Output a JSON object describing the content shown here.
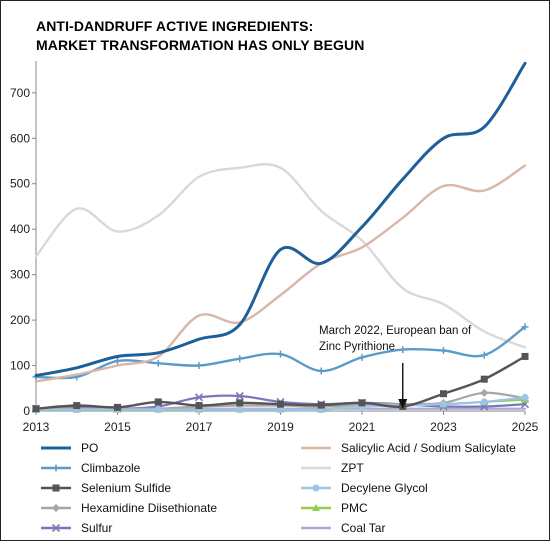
{
  "chart_data": {
    "type": "line",
    "title_lines": [
      "ANTI-DANDRUFF ACTIVE INGREDIENTS:",
      "MARKET TRANSFORMATION HAS ONLY BEGUN"
    ],
    "x": [
      2013,
      2014,
      2015,
      2016,
      2017,
      2018,
      2019,
      2020,
      2021,
      2022,
      2023,
      2024,
      2025
    ],
    "x_tick_labels": [
      "2013",
      "2015",
      "2017",
      "2019",
      "2021",
      "2023",
      "2025"
    ],
    "y_tick_labels": [
      "0",
      "100",
      "200",
      "300",
      "400",
      "500",
      "600",
      "700"
    ],
    "xlim": [
      2013,
      2025
    ],
    "ylim": [
      0,
      770
    ],
    "grid": false,
    "legend_position": "bottom",
    "series": [
      {
        "name": "PO",
        "color": "#1f5f99",
        "marker": "none",
        "values": [
          78,
          95,
          120,
          128,
          158,
          190,
          355,
          325,
          405,
          510,
          600,
          625,
          765
        ]
      },
      {
        "name": "Salicylic Acid / Sodium Salicylate",
        "color": "#d9b6a6",
        "marker": "none",
        "values": [
          65,
          80,
          100,
          120,
          210,
          195,
          255,
          325,
          360,
          425,
          495,
          485,
          540
        ]
      },
      {
        "name": "Climbazole",
        "color": "#5a9bc7",
        "marker": "plus",
        "values": [
          75,
          75,
          110,
          105,
          100,
          115,
          125,
          88,
          118,
          135,
          133,
          123,
          185
        ]
      },
      {
        "name": "ZPT",
        "color": "#d9d9d9",
        "marker": "none",
        "values": [
          340,
          445,
          395,
          430,
          515,
          535,
          535,
          440,
          375,
          270,
          235,
          175,
          140
        ]
      },
      {
        "name": "Selenium Sulfide",
        "color": "#555555",
        "marker": "square",
        "values": [
          5,
          12,
          8,
          20,
          12,
          18,
          15,
          13,
          18,
          10,
          38,
          70,
          120
        ]
      },
      {
        "name": "Decylene Glycol",
        "color": "#9dc3e6",
        "marker": "circle",
        "values": [
          3,
          3,
          3,
          3,
          3,
          3,
          3,
          3,
          10,
          12,
          15,
          20,
          30
        ]
      },
      {
        "name": "Hexamidine Diisethionate",
        "color": "#a6a6a6",
        "marker": "diamond",
        "values": [
          5,
          5,
          5,
          5,
          10,
          12,
          12,
          10,
          15,
          15,
          18,
          40,
          28
        ]
      },
      {
        "name": "PMC",
        "color": "#92d050",
        "marker": "triangle",
        "values": [
          3,
          3,
          3,
          3,
          3,
          3,
          3,
          3,
          15,
          15,
          15,
          20,
          25
        ]
      },
      {
        "name": "Sulfur",
        "color": "#7a78b8",
        "marker": "x",
        "values": [
          5,
          8,
          5,
          10,
          30,
          33,
          20,
          15,
          18,
          15,
          10,
          10,
          15
        ]
      },
      {
        "name": "Coal Tar",
        "color": "#a9a9d6",
        "marker": "none",
        "values": [
          5,
          5,
          5,
          5,
          5,
          5,
          5,
          5,
          5,
          5,
          5,
          5,
          5
        ]
      }
    ],
    "annotation": {
      "lines": [
        "March 2022, European ban of",
        "Zinc Pyrithione"
      ],
      "arrow_x": 2022
    }
  }
}
